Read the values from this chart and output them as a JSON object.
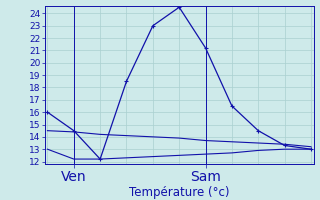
{
  "xlabel": "Température (°c)",
  "bg_color": "#ceeaea",
  "grid_color": "#aad0d0",
  "line_color": "#1111aa",
  "axis_color": "#2222cc",
  "yticks": [
    12,
    13,
    14,
    15,
    16,
    17,
    18,
    19,
    20,
    21,
    22,
    23,
    24
  ],
  "ylim": [
    11.8,
    24.6
  ],
  "xlim": [
    -0.1,
    10.1
  ],
  "x_ven": 1.0,
  "x_sam": 6.0,
  "main_x": [
    0,
    1,
    2,
    3,
    4,
    5,
    6,
    7,
    8,
    9,
    10
  ],
  "main_y": [
    16.0,
    14.5,
    12.2,
    18.5,
    23.0,
    24.5,
    21.2,
    16.5,
    14.5,
    13.3,
    13.0
  ],
  "upper_x": [
    0,
    1,
    2,
    3,
    4,
    5,
    6,
    7,
    8,
    9,
    10
  ],
  "upper_y": [
    14.5,
    14.4,
    14.2,
    14.1,
    14.0,
    13.9,
    13.7,
    13.6,
    13.5,
    13.4,
    13.2
  ],
  "lower_x": [
    0,
    1,
    2,
    3,
    4,
    5,
    6,
    7,
    8,
    9,
    10
  ],
  "lower_y": [
    13.0,
    12.2,
    12.2,
    12.3,
    12.4,
    12.5,
    12.6,
    12.7,
    12.9,
    13.0,
    13.0
  ],
  "tick_fontsize": 6.5,
  "label_fontsize": 8.5,
  "figsize": [
    3.2,
    2.0
  ],
  "dpi": 100
}
